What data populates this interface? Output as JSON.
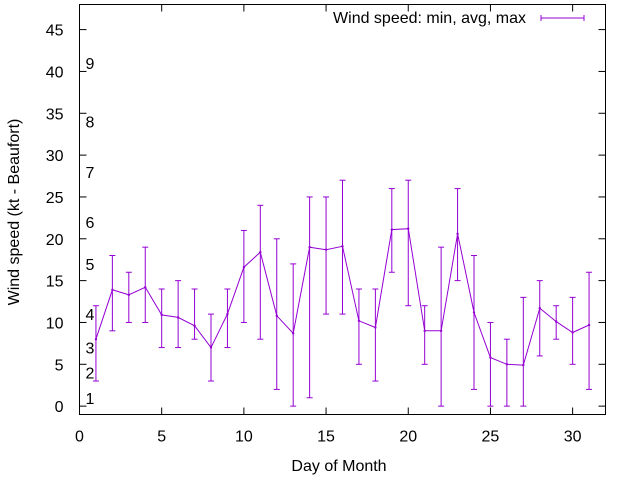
{
  "chart_data": {
    "type": "line",
    "xlabel": "Day of Month",
    "ylabel": "Wind speed (kt - Beaufort)",
    "xlim": [
      0,
      32
    ],
    "ylim": [
      -1,
      48
    ],
    "xticks": [
      0,
      5,
      10,
      15,
      20,
      25,
      30
    ],
    "yticks": [
      0,
      5,
      10,
      15,
      20,
      25,
      30,
      35,
      40,
      45
    ],
    "beaufort_labels": [
      {
        "label": "1",
        "kt": 1
      },
      {
        "label": "2",
        "kt": 4
      },
      {
        "label": "3",
        "kt": 7
      },
      {
        "label": "4",
        "kt": 11
      },
      {
        "label": "5",
        "kt": 17
      },
      {
        "label": "6",
        "kt": 22
      },
      {
        "label": "7",
        "kt": 28
      },
      {
        "label": "8",
        "kt": 34
      },
      {
        "label": "9",
        "kt": 41
      }
    ],
    "legend": {
      "label": "Wind speed: min, avg, max",
      "position": "top-right"
    },
    "color": "#9400d3",
    "series": [
      {
        "name": "Wind speed: min, avg, max",
        "x": [
          1,
          2,
          3,
          4,
          5,
          6,
          7,
          8,
          9,
          10,
          11,
          12,
          13,
          14,
          15,
          16,
          17,
          18,
          19,
          20,
          21,
          22,
          23,
          24,
          25,
          26,
          27,
          28,
          29,
          30,
          31
        ],
        "avg": [
          8,
          13.9,
          13.3,
          14.2,
          10.9,
          10.6,
          9.6,
          7,
          11,
          16.6,
          18.4,
          10.8,
          8.7,
          19,
          18.7,
          19.1,
          10.2,
          9.4,
          21.1,
          21.2,
          9,
          9,
          20.6,
          11.2,
          5.8,
          5,
          4.9,
          11.7,
          10.1,
          8.8,
          9.7
        ],
        "min": [
          3,
          9,
          10,
          10,
          7,
          7,
          8,
          3,
          7,
          10,
          8,
          2,
          0,
          1,
          11,
          11,
          5,
          3,
          16,
          12,
          5,
          0,
          15,
          2,
          0,
          0,
          0,
          6,
          8,
          5,
          2
        ],
        "max": [
          12,
          18,
          16,
          19,
          14,
          15,
          14,
          11,
          14,
          21,
          24,
          20,
          17,
          25,
          25,
          27,
          14,
          14,
          26,
          27,
          12,
          19,
          26,
          18,
          10,
          8,
          13,
          15,
          12,
          13,
          16
        ]
      }
    ]
  }
}
